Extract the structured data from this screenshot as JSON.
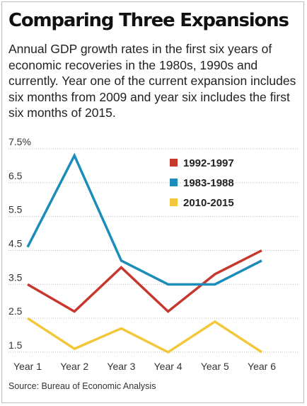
{
  "title": "Comparing Three Expansions",
  "subtitle": "Annual GDP growth rates in the first six years of economic recoveries in the 1980s, 1990s and currently. Year one of the current expansion includes six months from 2009 and year six includes the first six months of 2015.",
  "source": "Source: Bureau of Economic Analysis",
  "chart_data": {
    "type": "line",
    "categories": [
      "Year 1",
      "Year 2",
      "Year 3",
      "Year 4",
      "Year 5",
      "Year 6"
    ],
    "y_ticks": [
      "7.5%",
      "6.5",
      "5.5",
      "4.5",
      "3.5",
      "2.5",
      "1.5"
    ],
    "ylim": [
      1.5,
      7.5
    ],
    "grid": "horizontal",
    "legend_position": "top-right",
    "series": [
      {
        "name": "1992-1997",
        "color": "#c8372d",
        "values": [
          3.5,
          2.7,
          4.0,
          2.7,
          3.8,
          4.5
        ]
      },
      {
        "name": "1983-1988",
        "color": "#1c8dba",
        "values": [
          4.6,
          7.3,
          4.2,
          3.5,
          3.5,
          4.2
        ]
      },
      {
        "name": "2010-2015",
        "color": "#f2c83a",
        "values": [
          2.5,
          1.6,
          2.2,
          1.5,
          2.4,
          1.5
        ]
      }
    ]
  }
}
